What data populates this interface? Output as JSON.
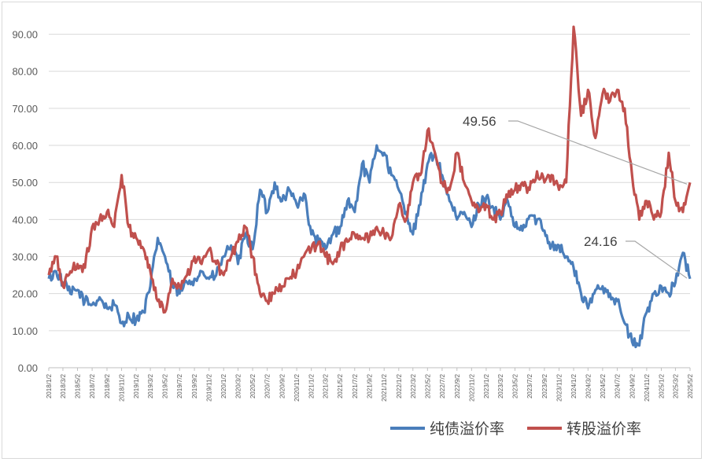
{
  "chart_data": {
    "type": "line",
    "title": "",
    "xlabel": "",
    "ylabel": "",
    "ylim": [
      0,
      95
    ],
    "y_ticks": [
      "0.00",
      "10.00",
      "20.00",
      "30.00",
      "40.00",
      "50.00",
      "60.00",
      "70.00",
      "80.00",
      "90.00"
    ],
    "grid": "horizontal",
    "legend_position": "bottom-right",
    "x_tick_labels": [
      "2018/1/2",
      "2018/3/2",
      "2018/5/2",
      "2018/7/2",
      "2018/9/2",
      "2018/11/2",
      "2019/1/2",
      "2019/3/2",
      "2019/5/2",
      "2019/7/2",
      "2019/9/2",
      "2019/11/2",
      "2020/1/2",
      "2020/3/2",
      "2020/5/2",
      "2020/7/2",
      "2020/9/2",
      "2020/11/2",
      "2021/1/2",
      "2021/3/2",
      "2021/5/2",
      "2021/7/2",
      "2021/9/2",
      "2021/11/2",
      "2022/1/2",
      "2022/3/2",
      "2022/5/2",
      "2022/7/2",
      "2022/9/2",
      "2022/11/2",
      "2023/1/2",
      "2023/3/2",
      "2023/5/2",
      "2023/7/2",
      "2023/9/2",
      "2023/11/2",
      "2024/1/2",
      "2024/3/2",
      "2024/5/2",
      "2024/7/2",
      "2024/9/2",
      "2024/11/2",
      "2025/1/2",
      "2025/3/2",
      "2025/5/2"
    ],
    "series": [
      {
        "name": "纯债溢价率",
        "color": "#4a7ebb",
        "x": [
          "2018/1/2",
          "2018/2/2",
          "2018/3/2",
          "2018/4/2",
          "2018/5/2",
          "2018/6/2",
          "2018/7/2",
          "2018/8/2",
          "2018/9/2",
          "2018/10/2",
          "2018/11/2",
          "2018/12/2",
          "2019/1/2",
          "2019/2/2",
          "2019/3/2",
          "2019/4/2",
          "2019/5/2",
          "2019/6/2",
          "2019/7/2",
          "2019/8/2",
          "2019/9/2",
          "2019/10/2",
          "2019/11/2",
          "2019/12/2",
          "2020/1/2",
          "2020/2/2",
          "2020/3/2",
          "2020/4/2",
          "2020/5/2",
          "2020/6/2",
          "2020/7/2",
          "2020/8/2",
          "2020/9/2",
          "2020/10/2",
          "2020/11/2",
          "2020/12/2",
          "2021/1/2",
          "2021/2/2",
          "2021/3/2",
          "2021/4/2",
          "2021/5/2",
          "2021/6/2",
          "2021/7/2",
          "2021/8/2",
          "2021/9/2",
          "2021/10/2",
          "2021/11/2",
          "2021/12/2",
          "2022/1/2",
          "2022/2/2",
          "2022/3/2",
          "2022/4/2",
          "2022/5/2",
          "2022/6/2",
          "2022/7/2",
          "2022/8/2",
          "2022/9/2",
          "2022/10/2",
          "2022/11/2",
          "2022/12/2",
          "2023/1/2",
          "2023/2/2",
          "2023/3/2",
          "2023/4/2",
          "2023/5/2",
          "2023/6/2",
          "2023/7/2",
          "2023/8/2",
          "2023/9/2",
          "2023/10/2",
          "2023/11/2",
          "2023/12/2",
          "2024/1/2",
          "2024/2/2",
          "2024/3/2",
          "2024/4/2",
          "2024/5/2",
          "2024/6/2",
          "2024/7/2",
          "2024/8/2",
          "2024/9/2",
          "2024/10/2",
          "2024/11/2",
          "2024/12/2",
          "2025/1/2",
          "2025/2/2",
          "2025/3/2",
          "2025/4/2",
          "2025/5/2"
        ],
        "values": [
          24,
          26,
          23,
          20,
          21,
          18,
          17,
          19,
          16,
          17,
          12,
          14,
          13,
          15,
          22,
          35,
          30,
          22,
          20,
          23,
          24,
          26,
          24,
          25,
          30,
          33,
          28,
          36,
          32,
          48,
          42,
          50,
          45,
          48,
          44,
          47,
          36,
          34,
          32,
          36,
          38,
          45,
          42,
          55,
          50,
          60,
          58,
          52,
          48,
          42,
          36,
          44,
          55,
          58,
          52,
          45,
          40,
          42,
          38,
          44,
          46,
          43,
          40,
          45,
          38,
          37,
          41,
          40,
          37,
          33,
          33,
          30,
          27,
          20,
          16,
          21,
          22,
          20,
          18,
          12,
          7,
          6,
          15,
          20,
          22,
          20,
          23,
          31,
          24
        ]
      },
      {
        "name": "转股溢价率",
        "color": "#c0504d",
        "x": [
          "2018/1/2",
          "2018/2/2",
          "2018/3/2",
          "2018/4/2",
          "2018/5/2",
          "2018/6/2",
          "2018/7/2",
          "2018/8/2",
          "2018/9/2",
          "2018/10/2",
          "2018/11/2",
          "2018/12/2",
          "2019/1/2",
          "2019/2/2",
          "2019/3/2",
          "2019/4/2",
          "2019/5/2",
          "2019/6/2",
          "2019/7/2",
          "2019/8/2",
          "2019/9/2",
          "2019/10/2",
          "2019/11/2",
          "2019/12/2",
          "2020/1/2",
          "2020/2/2",
          "2020/3/2",
          "2020/4/2",
          "2020/5/2",
          "2020/6/2",
          "2020/7/2",
          "2020/8/2",
          "2020/9/2",
          "2020/10/2",
          "2020/11/2",
          "2020/12/2",
          "2021/1/2",
          "2021/2/2",
          "2021/3/2",
          "2021/4/2",
          "2021/5/2",
          "2021/6/2",
          "2021/7/2",
          "2021/8/2",
          "2021/9/2",
          "2021/10/2",
          "2021/11/2",
          "2021/12/2",
          "2022/1/2",
          "2022/2/2",
          "2022/3/2",
          "2022/4/2",
          "2022/5/2",
          "2022/6/2",
          "2022/7/2",
          "2022/8/2",
          "2022/9/2",
          "2022/10/2",
          "2022/11/2",
          "2022/12/2",
          "2023/1/2",
          "2023/2/2",
          "2023/3/2",
          "2023/4/2",
          "2023/5/2",
          "2023/6/2",
          "2023/7/2",
          "2023/8/2",
          "2023/9/2",
          "2023/10/2",
          "2023/11/2",
          "2023/12/2",
          "2024/1/2",
          "2024/2/2",
          "2024/3/2",
          "2024/4/2",
          "2024/5/2",
          "2024/6/2",
          "2024/7/2",
          "2024/8/2",
          "2024/9/2",
          "2024/10/2",
          "2024/11/2",
          "2024/12/2",
          "2025/1/2",
          "2025/2/2",
          "2025/3/2",
          "2025/4/2",
          "2025/5/2"
        ],
        "values": [
          25,
          30,
          22,
          26,
          28,
          27,
          38,
          40,
          42,
          38,
          52,
          38,
          35,
          32,
          26,
          18,
          15,
          24,
          22,
          25,
          30,
          28,
          32,
          28,
          25,
          30,
          34,
          38,
          30,
          20,
          18,
          20,
          22,
          24,
          26,
          30,
          32,
          34,
          30,
          28,
          32,
          34,
          36,
          35,
          35,
          38,
          36,
          35,
          44,
          40,
          50,
          52,
          64,
          58,
          50,
          48,
          58,
          50,
          45,
          42,
          44,
          40,
          42,
          46,
          48,
          50,
          48,
          53,
          50,
          52,
          48,
          50,
          92,
          68,
          75,
          62,
          74,
          72,
          75,
          70,
          52,
          40,
          45,
          40,
          42,
          58,
          45,
          42,
          50
        ]
      }
    ],
    "annotations": [
      {
        "text": "49.56",
        "series": "转股溢价率",
        "value": 49.56
      },
      {
        "text": "24.16",
        "series": "纯债溢价率",
        "value": 24.16
      }
    ]
  }
}
